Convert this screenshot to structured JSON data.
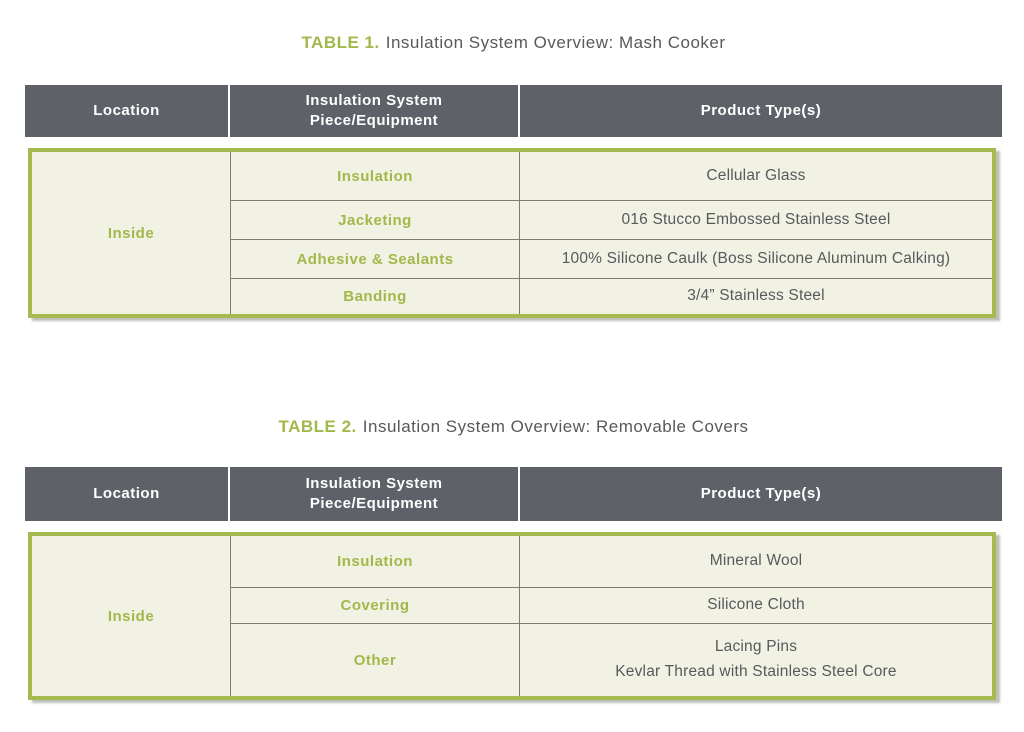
{
  "colors": {
    "green": "#a3b84b",
    "green_border": "#a5ba4f",
    "header_bg": "#5e6167",
    "header_text": "#ffffff",
    "body_bg": "#f1f2e4",
    "body_text": "#58595b",
    "row_border": "#7c7e71"
  },
  "tables": [
    {
      "title_label": "TABLE 1.",
      "title_text": "Insulation System Overview: Mash Cooker",
      "columns": [
        "Location",
        "Insulation System\nPiece/Equipment",
        "Product Type(s)"
      ],
      "location": "Inside",
      "rows": [
        {
          "piece": "Insulation",
          "product": "Cellular Glass"
        },
        {
          "piece": "Jacketing",
          "product": "016 Stucco Embossed Stainless Steel"
        },
        {
          "piece": "Adhesive & Sealants",
          "product": "100% Silicone Caulk (Boss Silicone Aluminum Calking)"
        },
        {
          "piece": "Banding",
          "product": "3/4” Stainless Steel"
        }
      ]
    },
    {
      "title_label": "TABLE 2.",
      "title_text": "Insulation System Overview: Removable Covers",
      "columns": [
        "Location",
        "Insulation System\nPiece/Equipment",
        "Product Type(s)"
      ],
      "location": "Inside",
      "rows": [
        {
          "piece": "Insulation",
          "product": "Mineral Wool"
        },
        {
          "piece": "Covering",
          "product": "Silicone Cloth"
        },
        {
          "piece": "Other",
          "product": "Lacing Pins\nKevlar Thread with Stainless Steel Core"
        }
      ]
    }
  ]
}
